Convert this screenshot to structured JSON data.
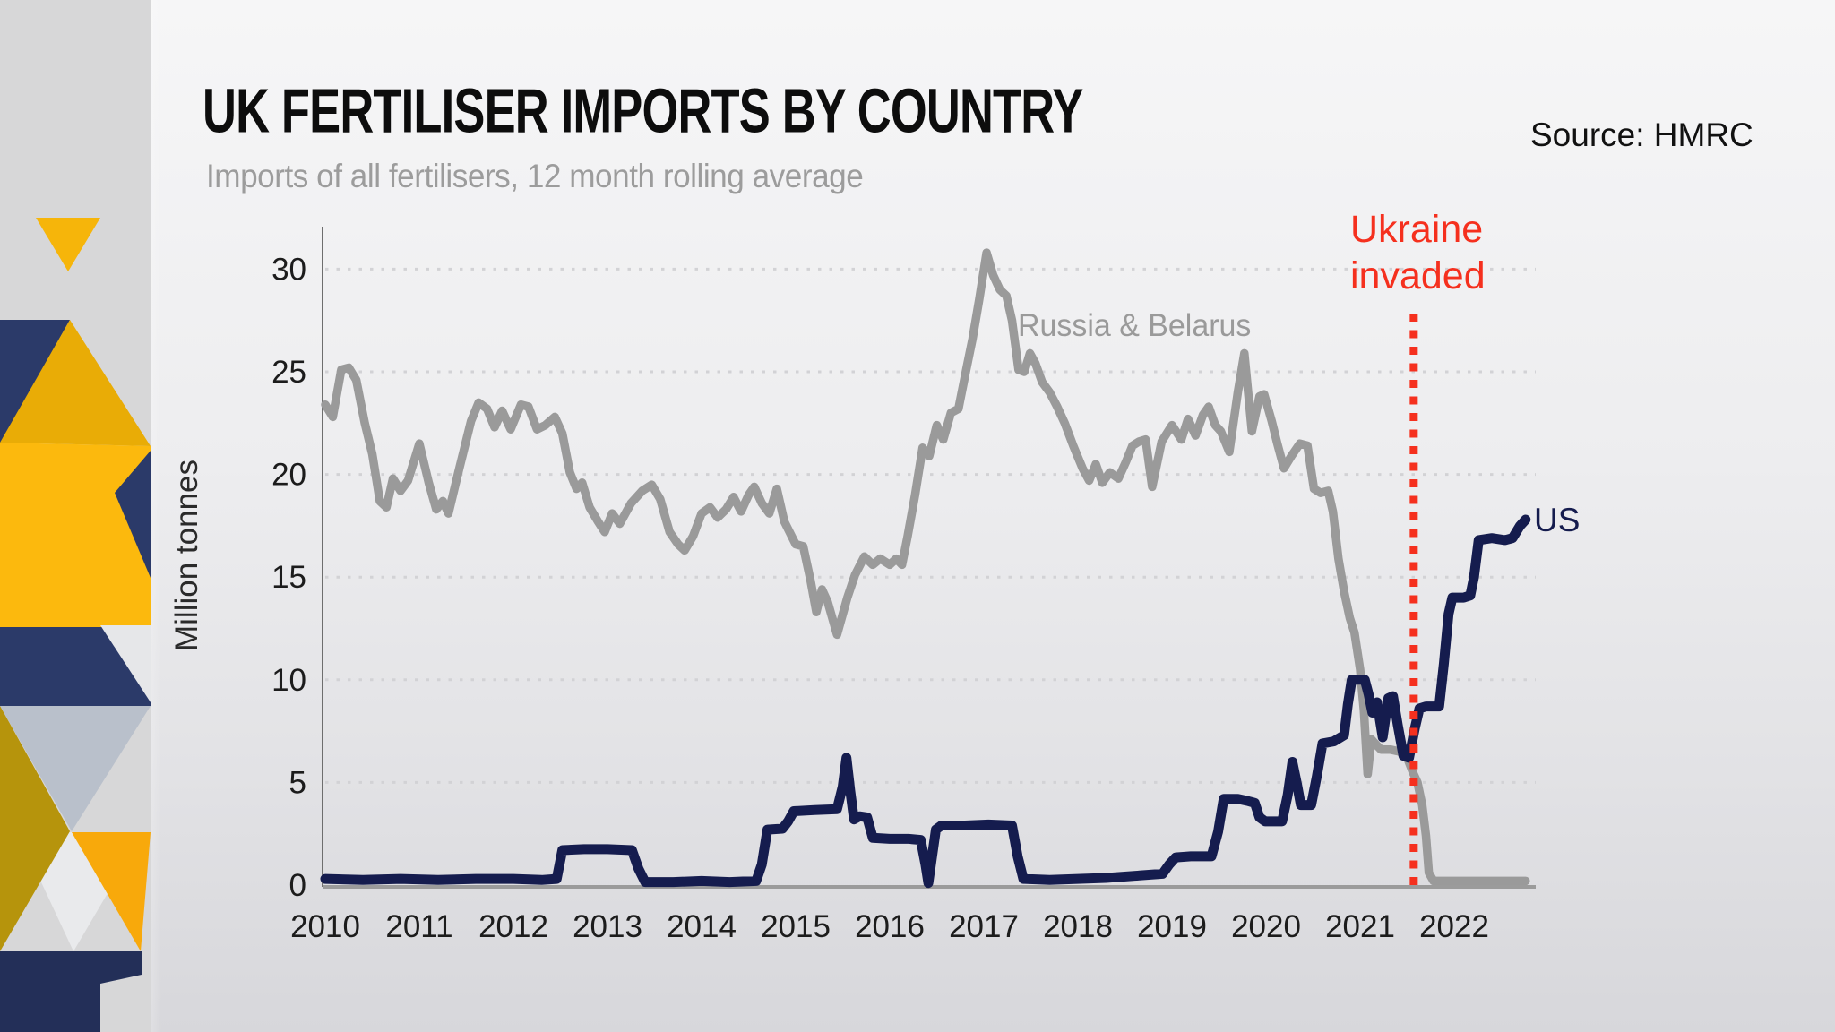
{
  "header": {
    "title": "UK FERTILISER IMPORTS BY COUNTRY",
    "subtitle": "Imports of all fertilisers, 12 month rolling average",
    "source": "Source: HMRC"
  },
  "colors": {
    "navy-line": "#151c4e",
    "gray-line": "#9a9a9a",
    "red": "#f5301e",
    "title": "#0d0d0d",
    "subtitle": "#9c9c9c",
    "tick": "#1c1c1c",
    "grid": "#d2d2d5",
    "axis": "#9b9b9b",
    "bg-top": "#f6f6f7",
    "bg-bottom": "#d7d7db",
    "sidebar-bg": "#d7d7d8",
    "decor-navy": "#2b3a69",
    "decor-navy-dark": "#232f58",
    "yellow": "#f6b50a",
    "yellow-bright": "#fcb90d",
    "yellow-deep": "#e9ac06",
    "olive": "#b6940c",
    "grayblue": "#b9c0cb",
    "orange": "#f8a90b"
  },
  "chart_data": {
    "type": "line",
    "title": "UK FERTILISER IMPORTS BY COUNTRY",
    "subtitle": "Imports of all fertilisers, 12 month rolling average",
    "xlabel": "",
    "ylabel": "Million tonnes",
    "x_ticks": [
      2010,
      2011,
      2012,
      2013,
      2014,
      2015,
      2016,
      2017,
      2018,
      2019,
      2020,
      2021,
      2022
    ],
    "y_ticks": [
      0,
      5,
      10,
      15,
      20,
      25,
      30
    ],
    "xlim": [
      2010,
      2022.8
    ],
    "ylim": [
      0,
      30
    ],
    "grid": "horizontal dotted",
    "legend_position": "inline labels on lines",
    "annotation": {
      "label_line1": "Ukraine",
      "label_line2": "invaded",
      "x": 2021.57,
      "style": "red dotted vertical line"
    },
    "series": [
      {
        "name": "Russia & Belarus",
        "id": "russia-belarus-line",
        "color": "#9a9a9a",
        "points": [
          [
            2010.0,
            23.4
          ],
          [
            2010.08,
            22.8
          ],
          [
            2010.17,
            25.1
          ],
          [
            2010.25,
            25.2
          ],
          [
            2010.33,
            24.6
          ],
          [
            2010.42,
            22.5
          ],
          [
            2010.5,
            21.0
          ],
          [
            2010.58,
            18.7
          ],
          [
            2010.65,
            18.4
          ],
          [
            2010.72,
            19.8
          ],
          [
            2010.8,
            19.2
          ],
          [
            2010.88,
            19.7
          ],
          [
            2011.0,
            21.5
          ],
          [
            2011.1,
            19.6
          ],
          [
            2011.18,
            18.3
          ],
          [
            2011.25,
            18.7
          ],
          [
            2011.31,
            18.1
          ],
          [
            2011.42,
            20.2
          ],
          [
            2011.55,
            22.6
          ],
          [
            2011.63,
            23.5
          ],
          [
            2011.72,
            23.2
          ],
          [
            2011.8,
            22.3
          ],
          [
            2011.88,
            23.1
          ],
          [
            2011.97,
            22.2
          ],
          [
            2012.08,
            23.4
          ],
          [
            2012.16,
            23.3
          ],
          [
            2012.25,
            22.2
          ],
          [
            2012.34,
            22.4
          ],
          [
            2012.44,
            22.8
          ],
          [
            2012.52,
            22.0
          ],
          [
            2012.6,
            20.1
          ],
          [
            2012.67,
            19.3
          ],
          [
            2012.73,
            19.6
          ],
          [
            2012.81,
            18.4
          ],
          [
            2012.9,
            17.7
          ],
          [
            2012.97,
            17.2
          ],
          [
            2013.05,
            18.1
          ],
          [
            2013.13,
            17.6
          ],
          [
            2013.25,
            18.6
          ],
          [
            2013.37,
            19.2
          ],
          [
            2013.47,
            19.5
          ],
          [
            2013.56,
            18.8
          ],
          [
            2013.66,
            17.2
          ],
          [
            2013.75,
            16.6
          ],
          [
            2013.82,
            16.3
          ],
          [
            2013.91,
            17.0
          ],
          [
            2014.0,
            18.1
          ],
          [
            2014.09,
            18.4
          ],
          [
            2014.17,
            17.9
          ],
          [
            2014.26,
            18.3
          ],
          [
            2014.34,
            18.9
          ],
          [
            2014.42,
            18.2
          ],
          [
            2014.5,
            19.0
          ],
          [
            2014.56,
            19.4
          ],
          [
            2014.64,
            18.6
          ],
          [
            2014.72,
            18.1
          ],
          [
            2014.8,
            19.3
          ],
          [
            2014.88,
            17.7
          ],
          [
            2015.0,
            16.6
          ],
          [
            2015.08,
            16.5
          ],
          [
            2015.16,
            14.8
          ],
          [
            2015.22,
            13.3
          ],
          [
            2015.28,
            14.4
          ],
          [
            2015.34,
            13.8
          ],
          [
            2015.44,
            12.2
          ],
          [
            2015.55,
            14.0
          ],
          [
            2015.63,
            15.1
          ],
          [
            2015.73,
            16.0
          ],
          [
            2015.82,
            15.6
          ],
          [
            2015.9,
            15.9
          ],
          [
            2016.0,
            15.6
          ],
          [
            2016.07,
            15.9
          ],
          [
            2016.13,
            15.6
          ],
          [
            2016.19,
            17.0
          ],
          [
            2016.27,
            19.0
          ],
          [
            2016.35,
            21.3
          ],
          [
            2016.42,
            20.9
          ],
          [
            2016.5,
            22.4
          ],
          [
            2016.57,
            21.7
          ],
          [
            2016.65,
            23.0
          ],
          [
            2016.73,
            23.2
          ],
          [
            2016.8,
            24.8
          ],
          [
            2016.88,
            26.6
          ],
          [
            2016.95,
            28.5
          ],
          [
            2017.03,
            30.8
          ],
          [
            2017.1,
            29.7
          ],
          [
            2017.17,
            29.0
          ],
          [
            2017.24,
            28.7
          ],
          [
            2017.3,
            27.5
          ],
          [
            2017.37,
            25.1
          ],
          [
            2017.43,
            25.0
          ],
          [
            2017.49,
            25.9
          ],
          [
            2017.55,
            25.4
          ],
          [
            2017.62,
            24.5
          ],
          [
            2017.7,
            24.0
          ],
          [
            2017.78,
            23.3
          ],
          [
            2017.86,
            22.5
          ],
          [
            2017.95,
            21.4
          ],
          [
            2018.05,
            20.3
          ],
          [
            2018.12,
            19.7
          ],
          [
            2018.19,
            20.5
          ],
          [
            2018.26,
            19.6
          ],
          [
            2018.34,
            20.1
          ],
          [
            2018.43,
            19.8
          ],
          [
            2018.51,
            20.6
          ],
          [
            2018.58,
            21.4
          ],
          [
            2018.65,
            21.6
          ],
          [
            2018.72,
            21.7
          ],
          [
            2018.79,
            19.4
          ],
          [
            2018.89,
            21.6
          ],
          [
            2019.0,
            22.4
          ],
          [
            2019.1,
            21.7
          ],
          [
            2019.17,
            22.7
          ],
          [
            2019.25,
            21.9
          ],
          [
            2019.33,
            22.9
          ],
          [
            2019.39,
            23.3
          ],
          [
            2019.46,
            22.4
          ],
          [
            2019.52,
            22.1
          ],
          [
            2019.61,
            21.1
          ],
          [
            2019.7,
            24.0
          ],
          [
            2019.77,
            25.9
          ],
          [
            2019.85,
            22.1
          ],
          [
            2019.93,
            23.8
          ],
          [
            2019.98,
            23.9
          ],
          [
            2020.06,
            22.6
          ],
          [
            2020.12,
            21.5
          ],
          [
            2020.19,
            20.3
          ],
          [
            2020.27,
            20.9
          ],
          [
            2020.36,
            21.5
          ],
          [
            2020.44,
            21.4
          ],
          [
            2020.51,
            19.3
          ],
          [
            2020.58,
            19.1
          ],
          [
            2020.66,
            19.2
          ],
          [
            2020.71,
            18.2
          ],
          [
            2020.77,
            15.9
          ],
          [
            2020.83,
            14.3
          ],
          [
            2020.89,
            13.0
          ],
          [
            2020.94,
            12.3
          ],
          [
            2021.0,
            10.5
          ],
          [
            2021.04,
            8.5
          ],
          [
            2021.08,
            5.4
          ],
          [
            2021.12,
            7.1
          ],
          [
            2021.16,
            6.9
          ],
          [
            2021.22,
            6.6
          ],
          [
            2021.32,
            6.6
          ],
          [
            2021.42,
            6.5
          ],
          [
            2021.5,
            6.2
          ],
          [
            2021.56,
            5.5
          ],
          [
            2021.61,
            5.0
          ],
          [
            2021.66,
            3.9
          ],
          [
            2021.7,
            2.4
          ],
          [
            2021.73,
            0.6
          ],
          [
            2021.78,
            0.2
          ],
          [
            2021.95,
            0.2
          ],
          [
            2022.2,
            0.2
          ],
          [
            2022.5,
            0.2
          ],
          [
            2022.76,
            0.2
          ]
        ]
      },
      {
        "name": "US",
        "id": "us-line",
        "color": "#151c4e",
        "points": [
          [
            2010.0,
            0.3
          ],
          [
            2010.4,
            0.25
          ],
          [
            2010.8,
            0.3
          ],
          [
            2011.2,
            0.25
          ],
          [
            2011.6,
            0.3
          ],
          [
            2012.0,
            0.3
          ],
          [
            2012.3,
            0.25
          ],
          [
            2012.46,
            0.3
          ],
          [
            2012.52,
            1.7
          ],
          [
            2012.75,
            1.75
          ],
          [
            2013.0,
            1.75
          ],
          [
            2013.26,
            1.7
          ],
          [
            2013.33,
            0.8
          ],
          [
            2013.4,
            0.15
          ],
          [
            2013.7,
            0.15
          ],
          [
            2014.0,
            0.2
          ],
          [
            2014.3,
            0.15
          ],
          [
            2014.58,
            0.2
          ],
          [
            2014.64,
            1.0
          ],
          [
            2014.7,
            2.7
          ],
          [
            2014.86,
            2.75
          ],
          [
            2014.92,
            3.1
          ],
          [
            2014.98,
            3.6
          ],
          [
            2015.2,
            3.65
          ],
          [
            2015.44,
            3.7
          ],
          [
            2015.5,
            4.8
          ],
          [
            2015.54,
            6.2
          ],
          [
            2015.58,
            4.6
          ],
          [
            2015.62,
            3.2
          ],
          [
            2015.68,
            3.35
          ],
          [
            2015.76,
            3.3
          ],
          [
            2015.82,
            2.3
          ],
          [
            2016.0,
            2.25
          ],
          [
            2016.2,
            2.25
          ],
          [
            2016.33,
            2.2
          ],
          [
            2016.38,
            1.0
          ],
          [
            2016.41,
            0.1
          ],
          [
            2016.45,
            1.4
          ],
          [
            2016.49,
            2.7
          ],
          [
            2016.55,
            2.9
          ],
          [
            2016.8,
            2.9
          ],
          [
            2017.05,
            2.95
          ],
          [
            2017.3,
            2.9
          ],
          [
            2017.36,
            1.4
          ],
          [
            2017.42,
            0.3
          ],
          [
            2017.7,
            0.25
          ],
          [
            2018.0,
            0.3
          ],
          [
            2018.3,
            0.35
          ],
          [
            2018.6,
            0.45
          ],
          [
            2018.9,
            0.55
          ],
          [
            2018.97,
            1.0
          ],
          [
            2019.04,
            1.35
          ],
          [
            2019.2,
            1.4
          ],
          [
            2019.42,
            1.4
          ],
          [
            2019.49,
            2.6
          ],
          [
            2019.55,
            4.2
          ],
          [
            2019.7,
            4.2
          ],
          [
            2019.8,
            4.1
          ],
          [
            2019.88,
            4.0
          ],
          [
            2019.93,
            3.3
          ],
          [
            2019.99,
            3.1
          ],
          [
            2020.17,
            3.1
          ],
          [
            2020.23,
            4.4
          ],
          [
            2020.28,
            6.0
          ],
          [
            2020.33,
            4.9
          ],
          [
            2020.37,
            3.9
          ],
          [
            2020.48,
            3.9
          ],
          [
            2020.54,
            5.3
          ],
          [
            2020.6,
            6.9
          ],
          [
            2020.72,
            7.0
          ],
          [
            2020.83,
            7.3
          ],
          [
            2020.87,
            8.8
          ],
          [
            2020.91,
            10.0
          ],
          [
            2021.05,
            10.0
          ],
          [
            2021.09,
            9.3
          ],
          [
            2021.13,
            8.4
          ],
          [
            2021.18,
            8.9
          ],
          [
            2021.24,
            7.2
          ],
          [
            2021.3,
            9.1
          ],
          [
            2021.35,
            9.2
          ],
          [
            2021.4,
            7.8
          ],
          [
            2021.46,
            6.3
          ],
          [
            2021.52,
            6.2
          ],
          [
            2021.58,
            7.6
          ],
          [
            2021.63,
            8.6
          ],
          [
            2021.7,
            8.7
          ],
          [
            2021.84,
            8.7
          ],
          [
            2021.89,
            10.8
          ],
          [
            2021.94,
            13.2
          ],
          [
            2021.98,
            14.0
          ],
          [
            2022.1,
            14.0
          ],
          [
            2022.17,
            14.1
          ],
          [
            2022.21,
            15.0
          ],
          [
            2022.26,
            16.8
          ],
          [
            2022.4,
            16.9
          ],
          [
            2022.54,
            16.8
          ],
          [
            2022.62,
            16.9
          ],
          [
            2022.7,
            17.5
          ],
          [
            2022.76,
            17.8
          ]
        ]
      }
    ]
  }
}
